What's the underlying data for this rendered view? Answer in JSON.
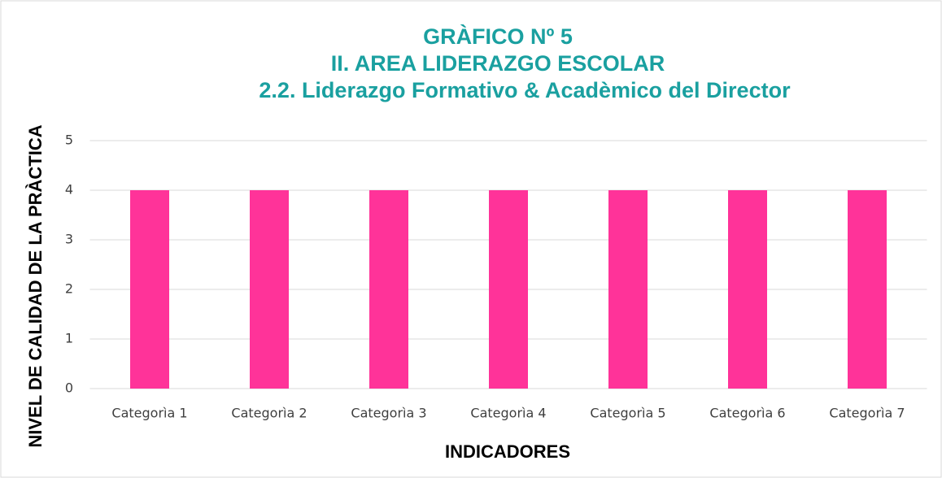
{
  "chart_data": {
    "type": "bar",
    "title": [
      "GRÀFICO Nº 5",
      "II. AREA LIDERAZGO ESCOLAR",
      "2.2. Liderazgo Formativo & Acadèmico del Director"
    ],
    "x_label": "INDICADORES",
    "y_label": "NIVEL DE CALIDAD DE LA PRÀCTICA",
    "categories": [
      "Categorìa 1",
      "Categorìa 2",
      "Categorìa 3",
      "Categorìa 4",
      "Categorìa 5",
      "Categorìa 6",
      "Categorìa 7"
    ],
    "values": [
      4,
      4,
      4,
      4,
      4,
      4,
      4
    ],
    "color": "#ff3399",
    "ylim": [
      0,
      5
    ],
    "yticks": [
      0,
      1,
      2,
      3,
      4,
      5
    ],
    "grid": true
  }
}
